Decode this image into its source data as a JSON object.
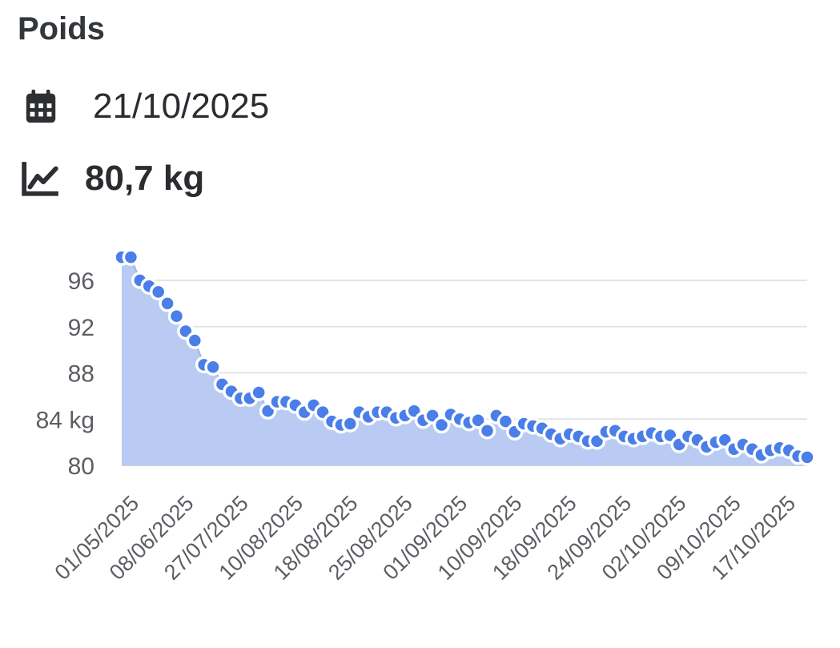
{
  "header": {
    "title": "Poids",
    "date": "21/10/2025",
    "weight": "80,7 kg",
    "date_icon": "calendar-icon",
    "weight_icon": "line-chart-icon"
  },
  "colors": {
    "accent": "#4a7ee8",
    "area_fill": "#b9cbf3",
    "grid": "#e3e4e6"
  },
  "chart_data": {
    "type": "area",
    "ylim": [
      80,
      98
    ],
    "yticks": [
      {
        "value": 96,
        "label": "96"
      },
      {
        "value": 92,
        "label": "92"
      },
      {
        "value": 88,
        "label": "88"
      },
      {
        "value": 84,
        "label": "84 kg"
      },
      {
        "value": 80,
        "label": "80"
      }
    ],
    "xtick_labels": [
      "01/05/2025",
      "08/06/2025",
      "27/07/2025",
      "10/08/2025",
      "18/08/2025",
      "25/08/2025",
      "01/09/2025",
      "10/09/2025",
      "18/09/2025",
      "24/09/2025",
      "02/10/2025",
      "09/10/2025",
      "17/10/2025"
    ],
    "series": [
      {
        "values": [
          98.0,
          98.0,
          96.0,
          95.5,
          95.0,
          94.0,
          92.9,
          91.6,
          90.8,
          88.7,
          88.5,
          87.0,
          86.4,
          85.8,
          85.8,
          86.3,
          84.7,
          85.5,
          85.5,
          85.2,
          84.6,
          85.2,
          84.6,
          83.8,
          83.5,
          83.6,
          84.6,
          84.2,
          84.6,
          84.6,
          84.1,
          84.3,
          84.7,
          83.9,
          84.3,
          83.5,
          84.4,
          84.0,
          83.7,
          83.9,
          83.0,
          84.3,
          83.8,
          82.9,
          83.6,
          83.4,
          83.2,
          82.7,
          82.3,
          82.7,
          82.5,
          82.1,
          82.1,
          82.9,
          83.0,
          82.5,
          82.3,
          82.5,
          82.8,
          82.5,
          82.6,
          81.8,
          82.5,
          82.2,
          81.6,
          82.0,
          82.2,
          81.4,
          81.8,
          81.4,
          80.9,
          81.3,
          81.5,
          81.3,
          80.8,
          80.7
        ]
      }
    ]
  }
}
